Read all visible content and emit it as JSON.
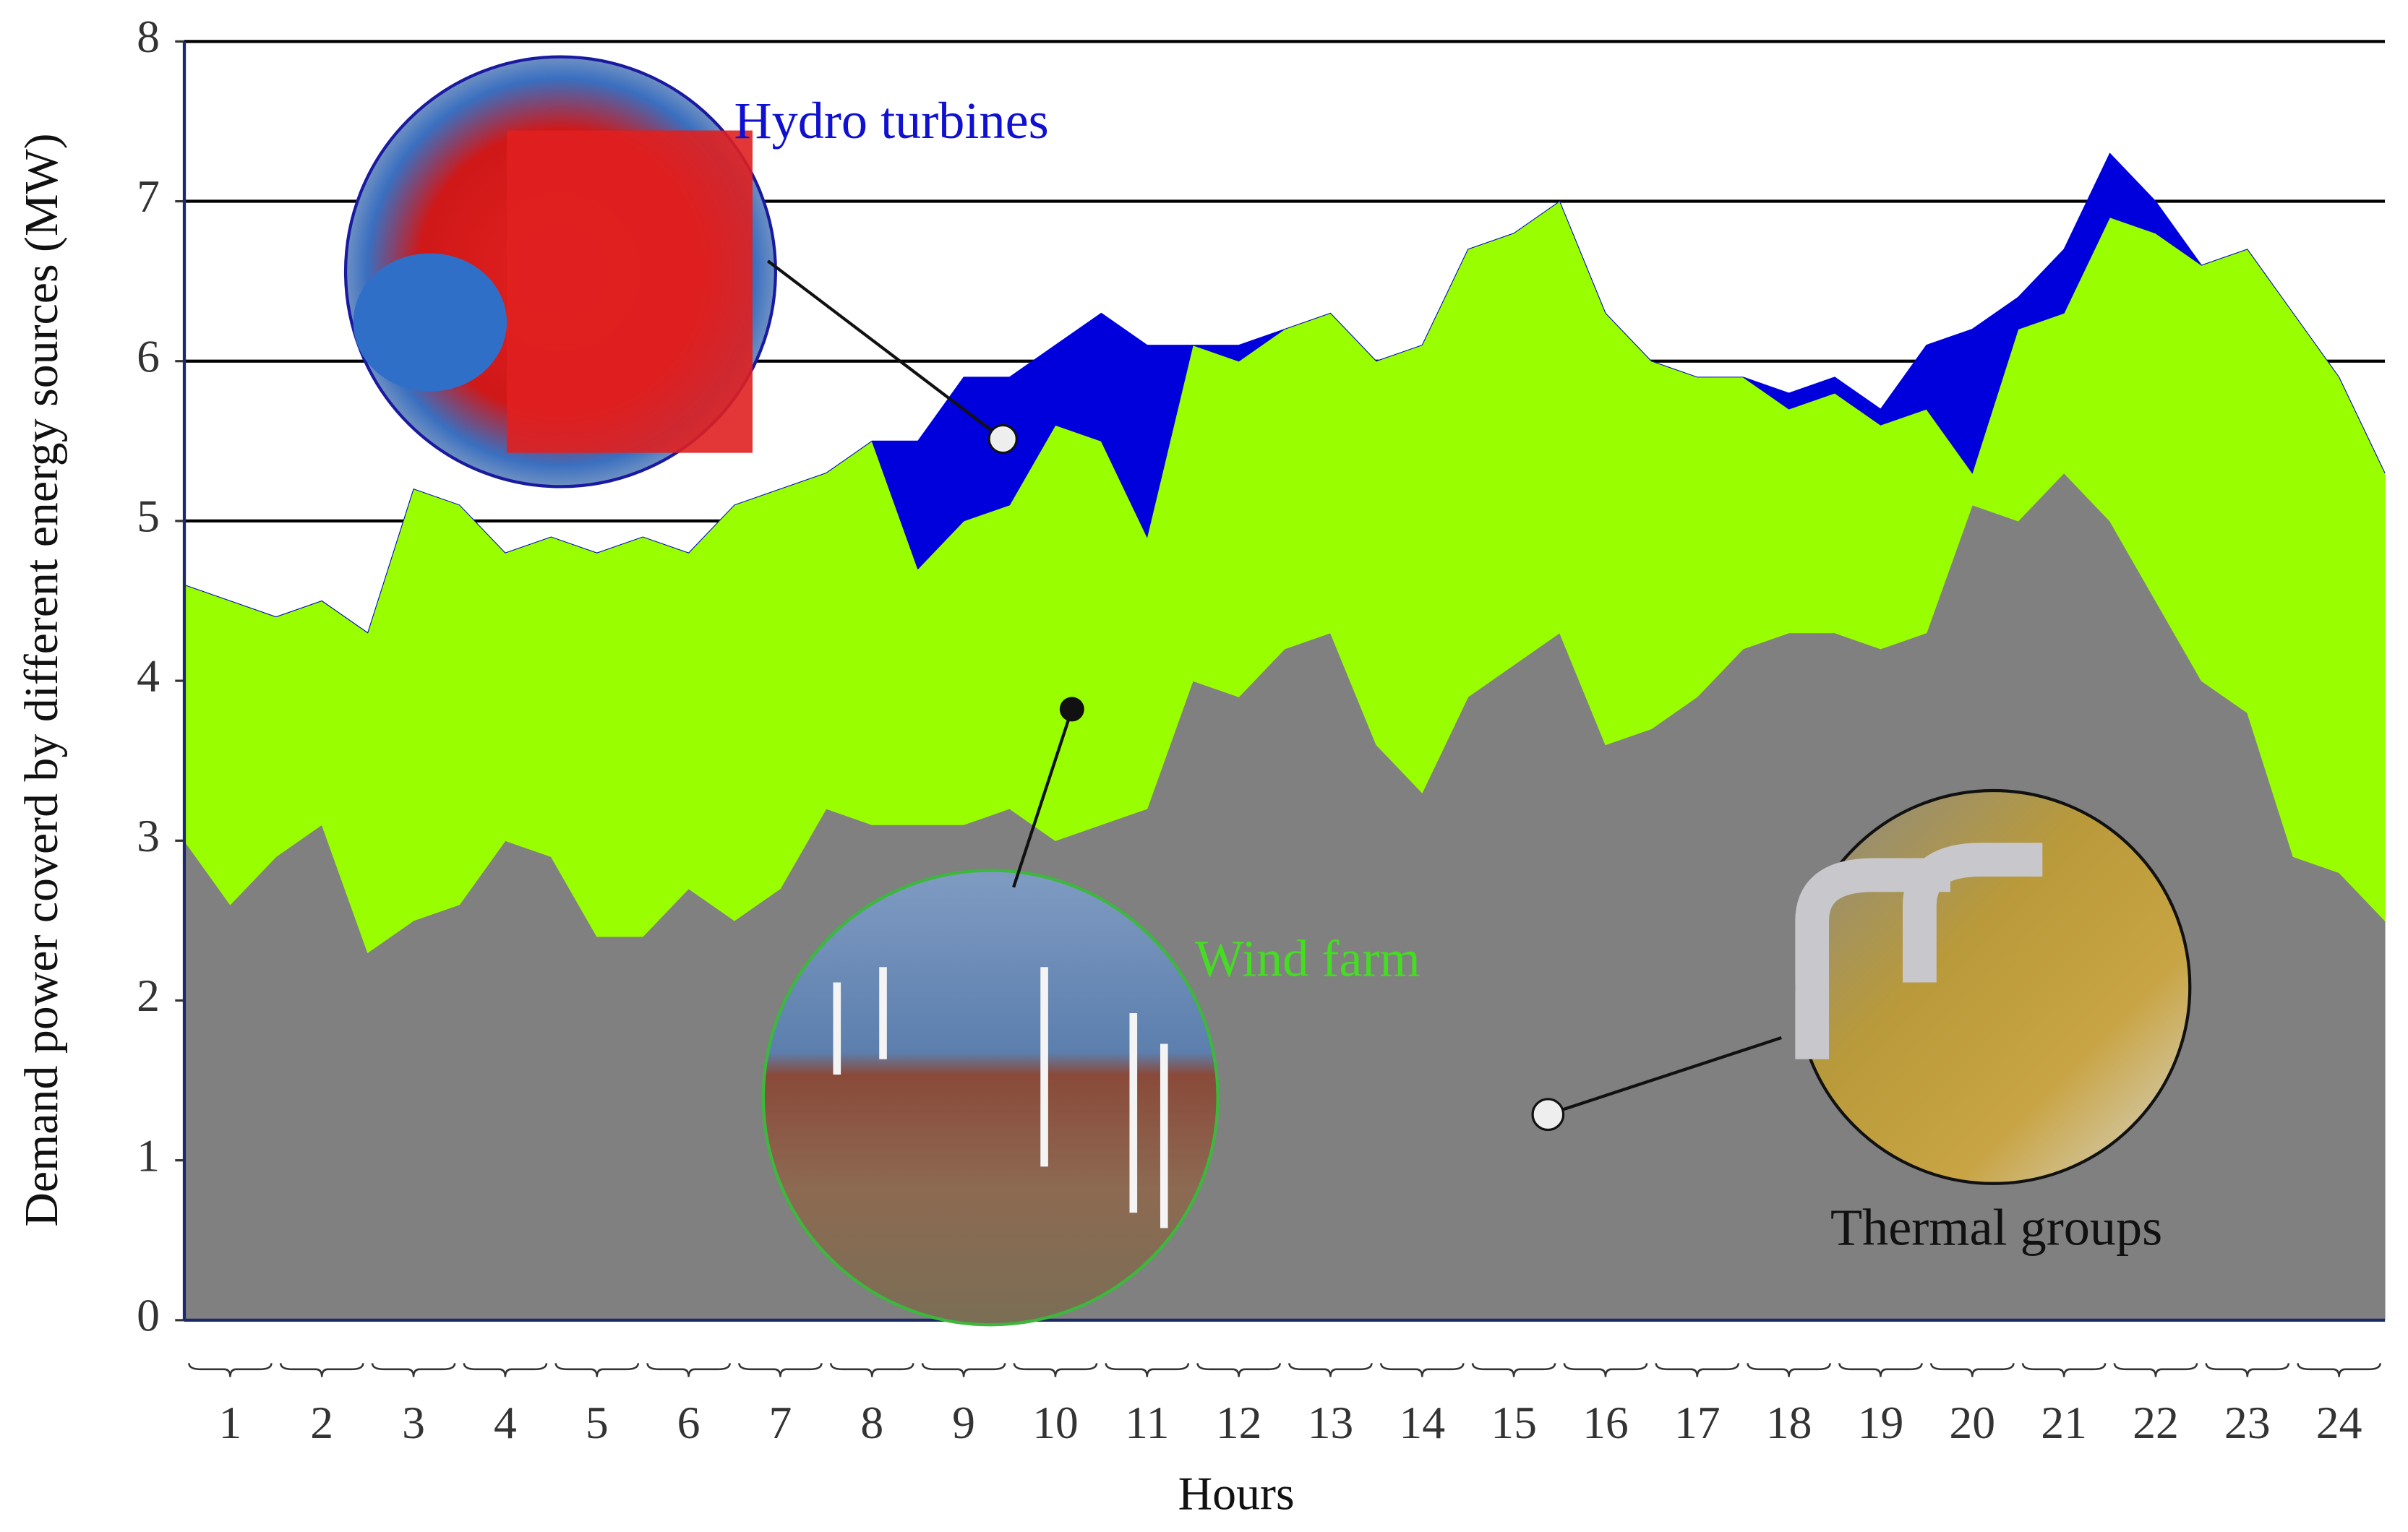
{
  "chart_data": {
    "type": "stacked_area",
    "y_label": "Demand power coverd  by different energy sources (MW)",
    "x_label": "Hours",
    "x": [
      0,
      0.5,
      1,
      1.5,
      2,
      2.5,
      3,
      3.5,
      4,
      4.5,
      5,
      5.5,
      6,
      6.5,
      7,
      7.5,
      8,
      8.5,
      9,
      9.5,
      10,
      10.5,
      11,
      11.5,
      12,
      12.5,
      13,
      13.5,
      14,
      14.5,
      15,
      15.5,
      16,
      16.5,
      17,
      17.5,
      18,
      18.5,
      19,
      19.5,
      20,
      20.5,
      21,
      21.5,
      22,
      22.5,
      23,
      23.5,
      24
    ],
    "xlim": [
      0,
      24
    ],
    "categories": [
      "1",
      "2",
      "3",
      "4",
      "5",
      "6",
      "7",
      "8",
      "9",
      "10",
      "11",
      "12",
      "13",
      "14",
      "15",
      "16",
      "17",
      "18",
      "19",
      "20",
      "21",
      "22",
      "23",
      "24"
    ],
    "ylim": [
      0,
      8
    ],
    "yticks": [
      0,
      1,
      2,
      3,
      4,
      5,
      6,
      7,
      8
    ],
    "grid": true,
    "series": [
      {
        "name": "Thermal groups",
        "color": "#808080",
        "values": [
          3.0,
          2.6,
          2.9,
          3.1,
          2.3,
          2.5,
          2.6,
          3.0,
          2.9,
          2.4,
          2.4,
          2.7,
          2.5,
          2.7,
          3.2,
          3.1,
          3.1,
          3.1,
          3.2,
          3.0,
          3.1,
          3.2,
          4.0,
          3.9,
          4.2,
          4.3,
          3.6,
          3.3,
          3.9,
          4.1,
          4.3,
          3.6,
          3.7,
          3.9,
          4.2,
          4.3,
          4.3,
          4.2,
          4.3,
          5.1,
          5.0,
          5.3,
          5.0,
          4.5,
          4.0,
          3.8,
          2.9,
          2.8,
          2.5
        ]
      },
      {
        "name": "Wind farm",
        "color": "#99ff00",
        "values": [
          1.6,
          1.9,
          1.5,
          1.4,
          2.0,
          2.7,
          2.5,
          1.8,
          2.0,
          2.4,
          2.5,
          2.1,
          2.6,
          2.5,
          2.1,
          2.4,
          1.6,
          1.9,
          1.9,
          2.6,
          2.4,
          1.7,
          2.1,
          2.1,
          2.0,
          2.0,
          2.4,
          2.8,
          2.8,
          2.7,
          2.7,
          2.7,
          2.3,
          2.0,
          1.7,
          1.4,
          1.5,
          1.4,
          1.4,
          0.2,
          1.2,
          1.0,
          1.9,
          2.3,
          2.6,
          2.9,
          3.4,
          3.1,
          2.8
        ]
      },
      {
        "name": "Hydro turbines",
        "color": "#0000dd",
        "values": [
          0,
          0,
          0,
          0,
          0,
          0,
          0,
          0,
          0,
          0,
          0,
          0,
          0,
          0,
          0,
          0,
          0.8,
          0.9,
          0.8,
          0.5,
          0.8,
          1.2,
          0,
          0.1,
          0,
          0,
          0,
          0,
          0,
          0,
          0,
          0,
          0,
          0,
          0,
          0.1,
          0.1,
          0.1,
          0.4,
          0.9,
          0.2,
          0.4,
          0.4,
          0.2,
          0,
          0,
          0,
          0,
          0
        ]
      }
    ]
  }
}
